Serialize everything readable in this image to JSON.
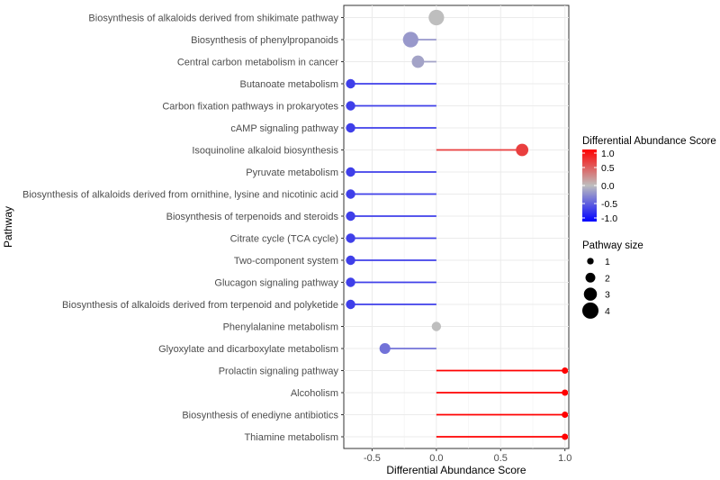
{
  "chart_data": {
    "type": "lollipop",
    "title": "",
    "xlabel": "Differential Abundance Score",
    "ylabel": "Pathway",
    "xlim": [
      -0.72,
      1.03
    ],
    "xticks": [
      -0.5,
      0.0,
      0.5,
      1.0
    ],
    "xtick_labels": [
      "-0.5",
      "0.0",
      "0.5",
      "1.0"
    ],
    "grid": true,
    "legend_placement": "right",
    "color_scale": {
      "title": "Differential Abundance Score",
      "low_color": "#0000ff",
      "mid_color": "#bebebe",
      "high_color": "#ff0000",
      "limits": [
        -1.0,
        1.0
      ],
      "breaks": [
        1.0,
        0.5,
        0.0,
        -0.5,
        -1.0
      ],
      "break_labels": [
        "1.0",
        "0.5",
        "0.0",
        "-0.5",
        "-1.0"
      ]
    },
    "size_scale": {
      "title": "Pathway size",
      "breaks": [
        1,
        2,
        3,
        4
      ],
      "break_labels": [
        "1",
        "2",
        "3",
        "4"
      ]
    },
    "points": [
      {
        "pathway": "Biosynthesis of alkaloids derived from shikimate pathway",
        "score": 0.0,
        "size": 4
      },
      {
        "pathway": "Biosynthesis of phenylpropanoids",
        "score": -0.2,
        "size": 4
      },
      {
        "pathway": "Central carbon metabolism in cancer",
        "score": -0.143,
        "size": 3
      },
      {
        "pathway": "Butanoate metabolism",
        "score": -0.667,
        "size": 2
      },
      {
        "pathway": "Carbon fixation pathways in prokaryotes",
        "score": -0.667,
        "size": 2
      },
      {
        "pathway": "cAMP signaling pathway",
        "score": -0.667,
        "size": 2
      },
      {
        "pathway": "Isoquinoline alkaloid biosynthesis",
        "score": 0.667,
        "size": 3
      },
      {
        "pathway": "Pyruvate metabolism",
        "score": -0.667,
        "size": 2
      },
      {
        "pathway": "Biosynthesis of alkaloids derived from ornithine, lysine and nicotinic acid",
        "score": -0.667,
        "size": 2
      },
      {
        "pathway": "Biosynthesis of terpenoids and steroids",
        "score": -0.667,
        "size": 2
      },
      {
        "pathway": "Citrate cycle (TCA cycle)",
        "score": -0.667,
        "size": 2
      },
      {
        "pathway": "Two-component system",
        "score": -0.667,
        "size": 2
      },
      {
        "pathway": "Glucagon signaling pathway",
        "score": -0.667,
        "size": 2
      },
      {
        "pathway": "Biosynthesis of alkaloids derived from terpenoid and polyketide",
        "score": -0.667,
        "size": 2
      },
      {
        "pathway": "Phenylalanine metabolism",
        "score": 0.0,
        "size": 2
      },
      {
        "pathway": "Glyoxylate and dicarboxylate metabolism",
        "score": -0.4,
        "size": 2.5
      },
      {
        "pathway": "Prolactin signaling pathway",
        "score": 1.0,
        "size": 1
      },
      {
        "pathway": "Alcoholism",
        "score": 1.0,
        "size": 1
      },
      {
        "pathway": "Biosynthesis of enediyne antibiotics",
        "score": 1.0,
        "size": 1
      },
      {
        "pathway": "Thiamine metabolism",
        "score": 1.0,
        "size": 1
      }
    ]
  }
}
